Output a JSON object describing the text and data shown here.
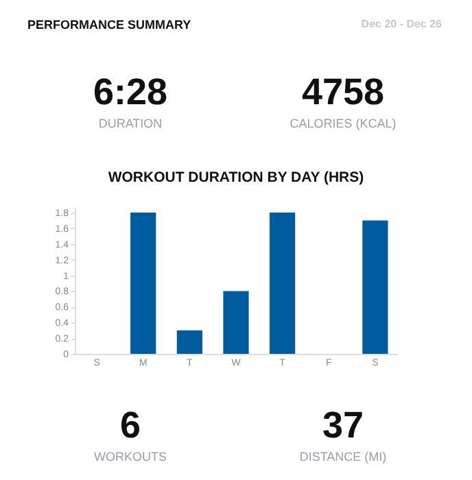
{
  "chart_data": [
    {
      "type": "other",
      "title": "PERFORMANCE SUMMARY",
      "subtitle": "Dec 20 - Dec 26",
      "annotations": [
        "6:28",
        "DURATION",
        "4758",
        "CALORIES (KCAL)"
      ]
    },
    {
      "type": "bar",
      "title": "WORKOUT DURATION BY DAY (HRS)",
      "categories": [
        "S",
        "M",
        "T",
        "W",
        "T",
        "F",
        "S"
      ],
      "values": [
        0,
        1.8,
        0.3,
        0.8,
        1.8,
        0,
        1.7
      ],
      "color": "#005c9e",
      "ylim": [
        0,
        1.87
      ],
      "yticks": [
        0,
        0.2,
        0.4,
        0.6,
        0.8,
        1,
        1.2,
        1.4,
        1.6,
        1.8
      ],
      "grid": false
    },
    {
      "type": "other",
      "annotations": [
        "6",
        "WORKOUTS",
        "37",
        "DISTANCE (MI)"
      ]
    }
  ]
}
